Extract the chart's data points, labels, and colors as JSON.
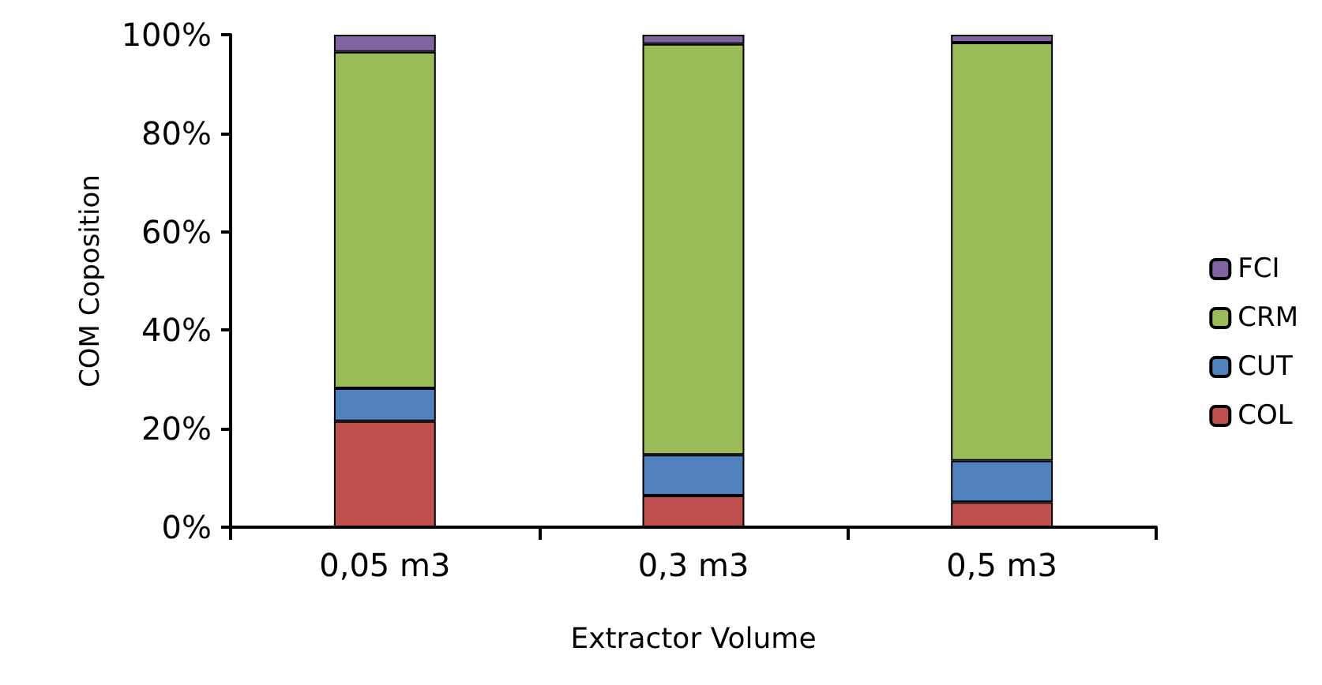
{
  "chart_data": {
    "type": "bar",
    "stacked": true,
    "xlabel": "Extractor Volume",
    "ylabel": "COM Coposition",
    "categories": [
      "0,05 m3",
      "0,3 m3",
      "0,5 m3"
    ],
    "series": [
      {
        "name": "COL",
        "color": "#c0504d",
        "values": [
          21.5,
          6.4,
          5.1
        ]
      },
      {
        "name": "CUT",
        "color": "#4f81bd",
        "values": [
          6.7,
          8.3,
          8.4
        ]
      },
      {
        "name": "CRM",
        "color": "#9bbb59",
        "values": [
          68.3,
          83.4,
          84.9
        ]
      },
      {
        "name": "FCI",
        "color": "#8064a2",
        "values": [
          3.5,
          1.9,
          1.6
        ]
      }
    ],
    "ylim": [
      0,
      100
    ],
    "yticks": [
      {
        "value": 0,
        "label": "0%"
      },
      {
        "value": 20,
        "label": "20%"
      },
      {
        "value": 40,
        "label": "40%"
      },
      {
        "value": 60,
        "label": "60%"
      },
      {
        "value": 80,
        "label": "80%"
      },
      {
        "value": 100,
        "label": "100%"
      }
    ],
    "grid": false,
    "legend": "right"
  }
}
